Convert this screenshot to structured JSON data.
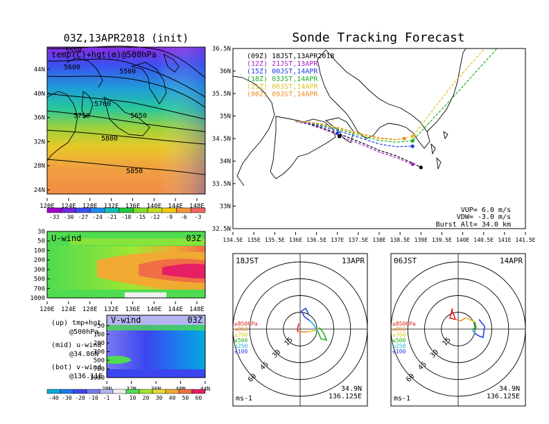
{
  "upper_left": {
    "title": "03Z,13APR2018 (init)",
    "label": "temp(C)+hgt(m)@500hPa",
    "lat_ticks": [
      "44N",
      "40N",
      "36N",
      "32N",
      "28N",
      "24N"
    ],
    "lon_ticks": [
      "120E",
      "124E",
      "128E",
      "132E",
      "136E",
      "140E",
      "144E",
      "148E"
    ],
    "contour_labels": [
      "5550",
      "5600",
      "5500",
      "5700",
      "5750",
      "5650",
      "5800",
      "5850"
    ],
    "colorbar_ticks": [
      "-33",
      "-30",
      "-27",
      "-24",
      "-21",
      "-18",
      "-15",
      "-12",
      "-9",
      "-6",
      "-3"
    ],
    "colorbar_colors": [
      "#a000c8",
      "#6e28dc",
      "#3c50f0",
      "#1e8cf0",
      "#14beb4",
      "#1ec83c",
      "#82dc28",
      "#c8dc28",
      "#f0c814",
      "#f0963c",
      "#f06464"
    ]
  },
  "u_wind": {
    "label": "U-wind",
    "time": "03Z",
    "lev_ticks": [
      "30",
      "50",
      "100",
      "200",
      "300",
      "500",
      "700",
      "1000"
    ],
    "lon_ticks": [
      "120E",
      "124E",
      "128E",
      "132E",
      "136E",
      "140E",
      "144E",
      "148E"
    ]
  },
  "v_wind": {
    "label": "V-wind",
    "time": "03Z",
    "lev_ticks": [
      "50",
      "100",
      "200",
      "300",
      "500",
      "700",
      "1000"
    ],
    "lat_ticks": [
      "28N",
      "32N",
      "36N",
      "40N",
      "44N"
    ]
  },
  "notes": [
    {
      "line1": "(up)  tmp+hgt",
      "line2": "@500hPa"
    },
    {
      "line1": "(mid) u-wind",
      "line2": "@34.86N"
    },
    {
      "line1": "(bot) v-wind",
      "line2": "@136.11E"
    }
  ],
  "wind_colorbar": {
    "ticks": [
      "-40",
      "-30",
      "-20",
      "-10",
      "-1",
      "1",
      "10",
      "20",
      "30",
      "40",
      "50",
      "60"
    ],
    "colors": [
      "#00aadc",
      "#1e78f0",
      "#3c46f0",
      "#7878f0",
      "#b4b4f0",
      "#f0f0f0",
      "#50dc50",
      "#a0e632",
      "#e6dc32",
      "#f0aa32",
      "#f06e46",
      "#e61e64"
    ]
  },
  "tracking": {
    "title": "Sonde Tracking Forecast",
    "lat_ticks": [
      "36.5N",
      "36N",
      "35.5N",
      "35N",
      "34.5N",
      "34N",
      "33.5N",
      "33N",
      "32.5N"
    ],
    "lon_ticks": [
      "134.5E",
      "135E",
      "135.5E",
      "136E",
      "136.5E",
      "137E",
      "137.5E",
      "138E",
      "138.5E",
      "139E",
      "139.5E",
      "140E",
      "140.5E",
      "141E",
      "141.5E"
    ],
    "legend": [
      {
        "text": "(09Z) 18JST,13APR2018",
        "color": "#000000"
      },
      {
        "text": "(12Z) 21JST,13APR",
        "color": "#a020c0"
      },
      {
        "text": "(15Z) 00JST,14APR",
        "color": "#2040e0"
      },
      {
        "text": "(18Z) 03JST,14APR",
        "color": "#20b020"
      },
      {
        "text": "(21Z) 06JST,14APR",
        "color": "#e0c020"
      },
      {
        "text": "(00Z) 09JST,14APR",
        "color": "#f08c28"
      }
    ],
    "params": {
      "vup": "VUP=  6.0 m/s",
      "vdw": "VDW= -3.0 m/s",
      "burst": "Burst Alt= 34.0 km"
    }
  },
  "hodographs": [
    {
      "time": "18JST",
      "date": "13APR",
      "lat": "34.9N",
      "lon": "136.125E",
      "unit": "ms-1",
      "rings": [
        "15",
        "30",
        "45",
        "60"
      ],
      "levels": [
        {
          "text": "≥850hPa",
          "color": "#e02020"
        },
        {
          "text": "≤850",
          "color": "#f08c28"
        },
        {
          "text": "≤700",
          "color": "#e0c820"
        },
        {
          "text": "≤500",
          "color": "#20b020"
        },
        {
          "text": "≤250",
          "color": "#20b4dc"
        },
        {
          "text": "≤100",
          "color": "#2040e0"
        }
      ]
    },
    {
      "time": "06JST",
      "date": "14APR",
      "lat": "34.9N",
      "lon": "136.125E",
      "unit": "ms-1",
      "rings": [
        "15",
        "30",
        "45",
        "60"
      ],
      "levels": [
        {
          "text": "≥850hPa",
          "color": "#e02020"
        },
        {
          "text": "≤850",
          "color": "#f08c28"
        },
        {
          "text": "≤700",
          "color": "#e0c820"
        },
        {
          "text": "≤500",
          "color": "#20b020"
        },
        {
          "text": "≤250",
          "color": "#20b4dc"
        },
        {
          "text": "≤100",
          "color": "#2040e0"
        }
      ]
    }
  ],
  "chart_data": [
    {
      "type": "heatmap",
      "title": "03Z,13APR2018 (init)",
      "subtitle": "temp(C)+hgt(m)@500hPa",
      "x": [
        "120E",
        "124E",
        "128E",
        "132E",
        "136E",
        "140E",
        "144E",
        "148E"
      ],
      "y": [
        "24N",
        "28N",
        "32N",
        "36N",
        "40N",
        "44N"
      ],
      "contours": [
        5500,
        5550,
        5600,
        5650,
        5700,
        5750,
        5800,
        5850
      ]
    },
    {
      "type": "heatmap",
      "title": "U-wind",
      "xlabel": "",
      "ylabel": ""
    },
    {
      "type": "heatmap",
      "title": "V-wind",
      "xlabel": "",
      "ylabel": ""
    },
    {
      "type": "line",
      "title": "Sonde Tracking Forecast",
      "xlim": [
        134.5,
        141.5
      ],
      "ylim": [
        32.5,
        36.5
      ],
      "series": [
        {
          "name": "(09Z) 18JST,13APR2018",
          "color": "#000000",
          "x": [
            136.0,
            136.3,
            136.6,
            136.9,
            137.2,
            137.6,
            138.0,
            138.4,
            138.7,
            139.0
          ],
          "y": [
            34.88,
            34.83,
            34.75,
            34.65,
            34.55,
            34.4,
            34.24,
            34.12,
            34.0,
            33.86
          ]
        },
        {
          "name": "(12Z) 21JST,13APR",
          "color": "#a020c0",
          "x": [
            136.0,
            136.3,
            136.6,
            136.9,
            137.2,
            137.6,
            138.0,
            138.4,
            138.8
          ],
          "y": [
            34.88,
            34.82,
            34.73,
            34.62,
            34.5,
            34.36,
            34.2,
            34.08,
            33.93
          ]
        },
        {
          "name": "(15Z) 00JST,14APR",
          "color": "#2040e0",
          "x": [
            136.0,
            136.3,
            136.6,
            136.9,
            137.2,
            137.6,
            138.0,
            138.4,
            138.8
          ],
          "y": [
            34.88,
            34.84,
            34.78,
            34.7,
            34.62,
            34.5,
            34.38,
            34.32,
            34.33
          ]
        },
        {
          "name": "(18Z) 03JST,14APR",
          "color": "#20b020",
          "x": [
            136.0,
            136.3,
            136.6,
            136.9,
            137.2,
            137.6,
            138.0,
            138.4,
            138.8,
            139.8,
            141.5
          ],
          "y": [
            34.88,
            34.86,
            34.8,
            34.74,
            34.66,
            34.55,
            34.46,
            34.42,
            34.45,
            35.45,
            37.2
          ]
        },
        {
          "name": "(21Z) 06JST,14APR",
          "color": "#e0c020",
          "x": [
            136.0,
            136.3,
            136.6,
            136.9,
            137.2,
            137.6,
            138.0,
            138.4,
            138.8,
            139.8,
            141.5
          ],
          "y": [
            34.88,
            34.86,
            34.82,
            34.76,
            34.69,
            34.58,
            34.5,
            34.47,
            34.55,
            35.75,
            37.5
          ]
        },
        {
          "name": "(00Z) 09JST,14APR",
          "color": "#f08c28",
          "x": [
            136.0,
            136.3,
            136.6,
            136.9,
            137.2,
            137.6,
            138.0,
            138.4,
            138.6
          ],
          "y": [
            34.88,
            34.87,
            34.83,
            34.77,
            34.7,
            34.6,
            34.52,
            34.48,
            34.5
          ]
        }
      ]
    }
  ]
}
